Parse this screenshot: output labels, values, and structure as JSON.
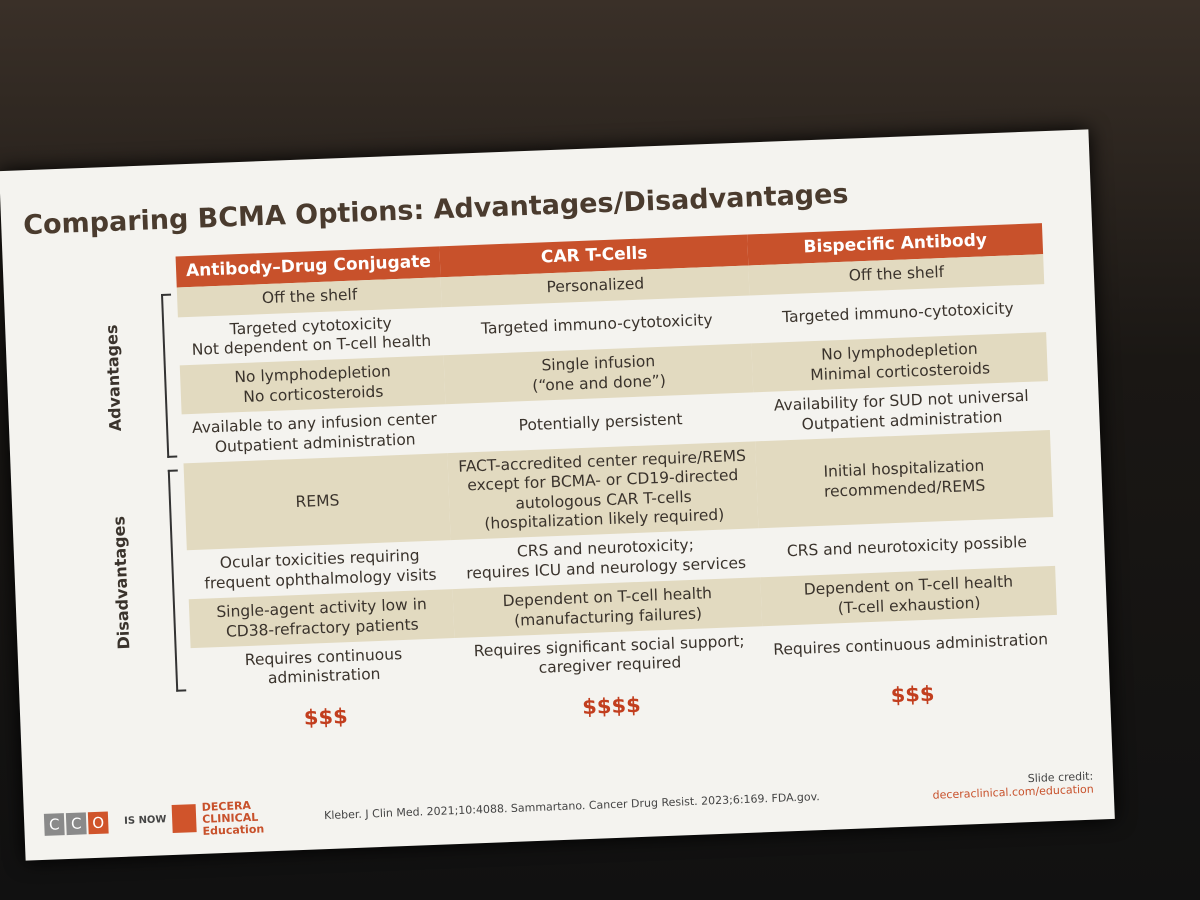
{
  "title": "Comparing BCMA Options: Advantages/Disadvantages",
  "table": {
    "columns": [
      "Antibody–Drug Conjugate",
      "CAR T-Cells",
      "Bispecific Antibody"
    ],
    "groups": [
      {
        "label": "Advantages",
        "rows": 4
      },
      {
        "label": "Disadvantages",
        "rows": 4
      }
    ],
    "rows": [
      [
        [
          "Off the shelf"
        ],
        [
          "Personalized"
        ],
        [
          "Off the shelf"
        ]
      ],
      [
        [
          "Targeted cytotoxicity",
          "Not dependent on T-cell health"
        ],
        [
          "Targeted immuno-cytotoxicity"
        ],
        [
          "Targeted immuno-cytotoxicity"
        ]
      ],
      [
        [
          "No lymphodepletion",
          "No corticosteroids"
        ],
        [
          "Single infusion",
          "(“one and done”)"
        ],
        [
          "No lymphodepletion",
          "Minimal corticosteroids"
        ]
      ],
      [
        [
          "Available to any infusion center",
          "Outpatient administration"
        ],
        [
          "Potentially persistent"
        ],
        [
          "Availability for SUD not universal",
          "Outpatient administration"
        ]
      ],
      [
        [
          "REMS"
        ],
        [
          "FACT-accredited center require/REMS",
          "except for BCMA- or CD19-directed",
          "autologous CAR T-cells",
          "(hospitalization likely required)"
        ],
        [
          "Initial hospitalization",
          "recommended/REMS"
        ]
      ],
      [
        [
          "Ocular toxicities requiring",
          "frequent ophthalmology visits"
        ],
        [
          "CRS and neurotoxicity;",
          "requires ICU and neurology services"
        ],
        [
          "CRS and neurotoxicity possible"
        ]
      ],
      [
        [
          "Single-agent activity low in",
          "CD38-refractory patients"
        ],
        [
          "Dependent on T-cell health",
          "(manufacturing failures)"
        ],
        [
          "Dependent on T-cell health",
          "(T-cell exhaustion)"
        ]
      ],
      [
        [
          "Requires continuous",
          "administration"
        ],
        [
          "Requires significant social support;",
          "caregiver required"
        ],
        [
          "Requires continuous administration"
        ]
      ]
    ],
    "costs": [
      "$$$",
      "$$$$",
      "$$$"
    ]
  },
  "footer": {
    "cco_letters": [
      "C",
      "C",
      "O"
    ],
    "is_now": "IS NOW",
    "brand": [
      "DECERA",
      "CLINICAL",
      "Education"
    ],
    "citation": "Kleber. J Clin Med. 2021;10:4088. Sammartano. Cancer Drug Resist. 2023;6:169. FDA.gov.",
    "credit_label": "Slide credit:",
    "credit_url": "deceraclinical.com/education"
  }
}
